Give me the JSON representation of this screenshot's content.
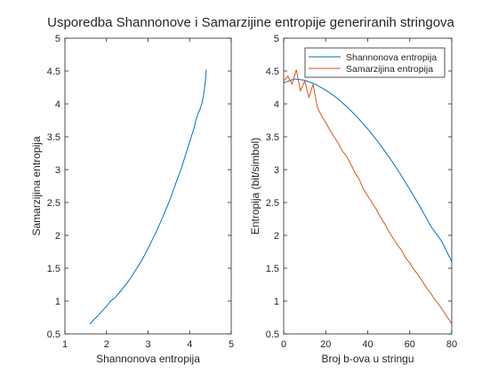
{
  "figure": {
    "title": "Usporedba Shannonove i Samarzijine entropije generiranih stringova"
  },
  "colors": {
    "series1": "#0072BD",
    "series2": "#D95319",
    "axis": "#262626"
  },
  "chart_data": [
    {
      "type": "line",
      "title": "",
      "xlabel": "Shannonova entropija",
      "ylabel": "Samarzijina entropija",
      "xlim": [
        1,
        5
      ],
      "ylim": [
        0.5,
        5
      ],
      "xticks": [
        "1",
        "2",
        "3",
        "4",
        "5"
      ],
      "yticks": [
        "0.5",
        "1",
        "1.5",
        "2",
        "2.5",
        "3",
        "3.5",
        "4",
        "4.5",
        "5"
      ],
      "grid": false,
      "legend": null,
      "series": [
        {
          "x": [
            1.6,
            1.7,
            1.8,
            1.9,
            2.0,
            2.1,
            2.2,
            2.3,
            2.4,
            2.5,
            2.6,
            2.7,
            2.8,
            2.9,
            3.0,
            3.1,
            3.2,
            3.3,
            3.4,
            3.5,
            3.6,
            3.7,
            3.8,
            3.9,
            4.0,
            4.1,
            4.15,
            4.2,
            4.25,
            4.3,
            4.33,
            4.35,
            4.37,
            4.39,
            4.4
          ],
          "y": [
            0.65,
            0.72,
            0.78,
            0.85,
            0.92,
            1.0,
            1.05,
            1.12,
            1.2,
            1.28,
            1.37,
            1.47,
            1.57,
            1.68,
            1.8,
            1.93,
            2.06,
            2.2,
            2.35,
            2.5,
            2.67,
            2.85,
            3.02,
            3.22,
            3.42,
            3.62,
            3.75,
            3.85,
            3.92,
            4.02,
            4.12,
            4.2,
            4.3,
            4.42,
            4.52
          ]
        }
      ]
    },
    {
      "type": "line",
      "title": "",
      "xlabel": "Broj b-ova u stringu",
      "ylabel": "Entropija (bit/simbol)",
      "xlim": [
        0,
        80
      ],
      "ylim": [
        0.5,
        5
      ],
      "xticks": [
        "0",
        "20",
        "40",
        "60",
        "80"
      ],
      "yticks": [
        "0.5",
        "1",
        "1.5",
        "2",
        "2.5",
        "3",
        "3.5",
        "4",
        "4.5",
        "5"
      ],
      "grid": false,
      "legend": "top-right",
      "series": [
        {
          "name": "Shannonova entropija",
          "x": [
            0,
            5,
            10,
            15,
            20,
            25,
            30,
            35,
            40,
            45,
            50,
            55,
            60,
            65,
            70,
            75,
            80
          ],
          "y": [
            4.32,
            4.38,
            4.36,
            4.3,
            4.21,
            4.1,
            3.96,
            3.8,
            3.62,
            3.42,
            3.2,
            2.96,
            2.7,
            2.43,
            2.14,
            1.92,
            1.6
          ]
        },
        {
          "name": "Samarzijina entropija",
          "x": [
            0,
            2,
            4,
            6,
            8,
            10,
            12,
            14,
            16,
            18,
            20,
            22,
            24,
            26,
            28,
            30,
            32,
            34,
            36,
            38,
            40,
            42,
            44,
            46,
            48,
            50,
            52,
            54,
            56,
            58,
            60,
            62,
            64,
            66,
            68,
            70,
            72,
            74,
            76,
            78,
            80
          ],
          "y": [
            4.35,
            4.42,
            4.3,
            4.52,
            4.2,
            4.35,
            4.1,
            4.3,
            3.95,
            3.82,
            3.72,
            3.6,
            3.5,
            3.4,
            3.28,
            3.2,
            3.08,
            2.95,
            2.85,
            2.7,
            2.6,
            2.5,
            2.4,
            2.28,
            2.18,
            2.06,
            1.96,
            1.86,
            1.78,
            1.66,
            1.58,
            1.48,
            1.4,
            1.3,
            1.2,
            1.12,
            1.02,
            0.94,
            0.85,
            0.75,
            0.66
          ]
        }
      ]
    }
  ]
}
